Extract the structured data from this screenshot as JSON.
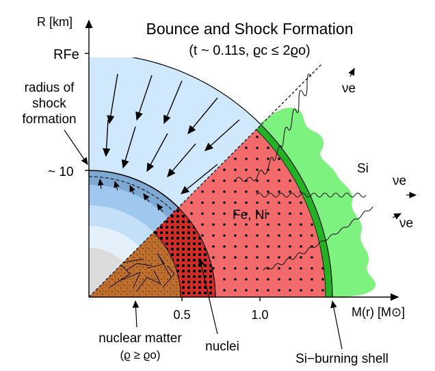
{
  "title": {
    "line1": "Bounce and Shock Formation",
    "line2": "(t ~ 0.11s, ϱc ≤ 2ϱo)"
  },
  "axes": {
    "y_label": "R [km]",
    "x_label": "M(r) [M⊙]",
    "y_tick_rfe": "RFe",
    "y_tick_10": "~ 10",
    "x_tick_05": "0.5",
    "x_tick_10": "1.0"
  },
  "labels": {
    "shock_radius": [
      "radius of",
      "shock",
      "formation"
    ],
    "fe_ni": "Fe, Ni",
    "si": "Si",
    "neutrino": "νe",
    "nuclear_matter": "nuclear matter",
    "nuclear_density": "(ϱ ≥ ϱo)",
    "nuclei": "nuclei",
    "si_shell": "Si−burning shell"
  },
  "colors": {
    "infall": "#cfe8fb",
    "inner_blue": "#8fbde0",
    "fe_ni": "#f26a6a",
    "nuclei_core": "#d52b2b",
    "nuclear_matter": "#bd6a2c",
    "si": "#7ef27e",
    "si_shell": "#22b322"
  }
}
